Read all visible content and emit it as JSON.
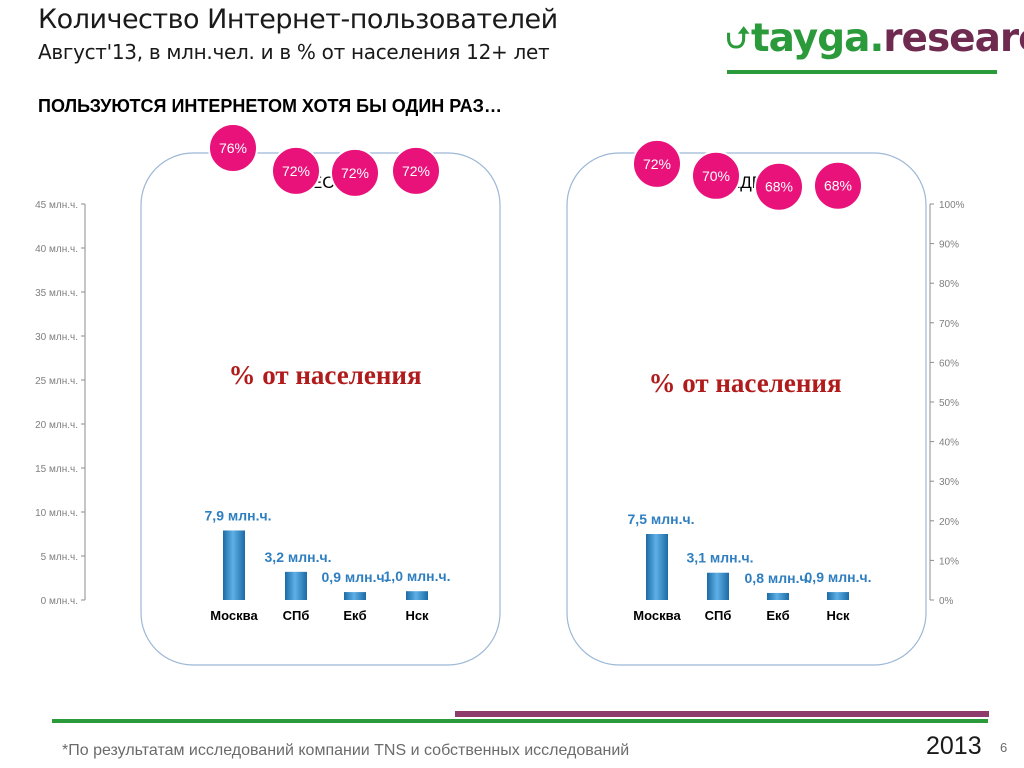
{
  "header": {
    "title": "Количество Интернет-пользователей",
    "subtitle": "Август'13, в млн.чел. и в % от населения 12+ лет",
    "logo_part1": "tayga.",
    "logo_part2": "research",
    "headline": "ПОЛЬЗУЮТСЯ ИНТЕРНЕТОМ ХОТЯ БЫ ОДИН РАЗ…"
  },
  "footer": {
    "note": "*По результатам исследований компании TNS и собственных исследований",
    "year": "2013",
    "page": "6"
  },
  "colors": {
    "bar": "#2d86c3",
    "bubble": "#e8127a",
    "value_label": "#2f7fc0",
    "pct_title": "#b01c1c",
    "accent_green": "#2b9a3a",
    "accent_purple": "#8e3c6c"
  },
  "chart_data": [
    {
      "type": "bar",
      "title": "В МЕСЯЦ",
      "annotation": "% от населения",
      "categories": [
        "Москва",
        "СПб",
        "Екб",
        "Нск"
      ],
      "values": [
        7.9,
        3.2,
        0.9,
        1.0
      ],
      "value_labels": [
        "7,9 млн.ч.",
        "3,2 млн.ч.",
        "0,9 млн.ч.",
        "1,0 млн.ч."
      ],
      "percent_of_population": [
        76,
        72,
        72,
        72
      ],
      "percent_labels": [
        "76%",
        "72%",
        "72%",
        "72%"
      ],
      "ylim": [
        0,
        45
      ],
      "y_ticks": [
        0,
        5,
        10,
        15,
        20,
        25,
        30,
        35,
        40,
        45
      ],
      "y_tick_labels": [
        "0 млн.ч.",
        "5 млн.ч.",
        "10 млн.ч.",
        "15 млн.ч.",
        "20 млн.ч.",
        "25 млн.ч.",
        "30 млн.ч.",
        "35 млн.ч.",
        "40 млн.ч.",
        "45 млн.ч."
      ],
      "y2lim": [
        0,
        100
      ],
      "y2_ticks": [],
      "y2_tick_labels": []
    },
    {
      "type": "bar",
      "title": "В НЕДЕЛЮ",
      "annotation": "% от населения",
      "categories": [
        "Москва",
        "СПб",
        "Екб",
        "Нск"
      ],
      "values": [
        7.5,
        3.1,
        0.8,
        0.9
      ],
      "value_labels": [
        "7,5 млн.ч.",
        "3,1 млн.ч.",
        "0,8 млн.ч.",
        "0,9 млн.ч."
      ],
      "percent_of_population": [
        72,
        70,
        68,
        68
      ],
      "percent_labels": [
        "72%",
        "70%",
        "68%",
        "68%"
      ],
      "ylim": [
        0,
        45
      ],
      "y_ticks": [],
      "y_tick_labels": [],
      "y2lim": [
        0,
        100
      ],
      "y2_ticks": [
        0,
        10,
        20,
        30,
        40,
        50,
        60,
        70,
        80,
        90,
        100
      ],
      "y2_tick_labels": [
        "0%",
        "10%",
        "20%",
        "30%",
        "40%",
        "50%",
        "60%",
        "70%",
        "80%",
        "90%",
        "100%"
      ]
    }
  ]
}
